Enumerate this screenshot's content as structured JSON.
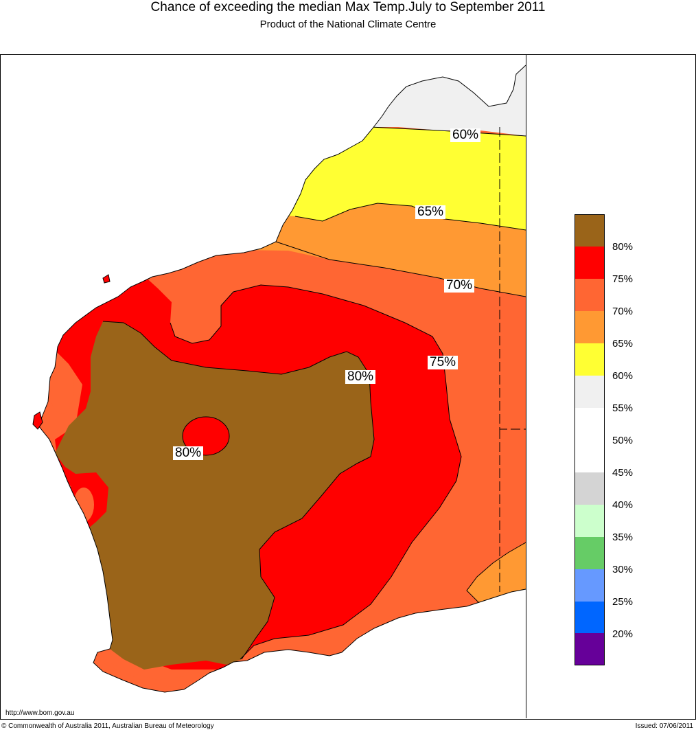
{
  "header": {
    "title": "Chance of exceeding the median Max Temp.July to September 2011",
    "subtitle": "Product of the National Climate Centre"
  },
  "map": {
    "contour_labels": [
      "60%",
      "65%",
      "70%",
      "75%",
      "80%",
      "80%"
    ],
    "region_colors": {
      "above_80": "#9a6419",
      "75_80": "#ff0000",
      "70_75": "#ff6633",
      "65_70": "#ff9933",
      "60_65": "#ffff33",
      "55_60": "#f0f0f0"
    }
  },
  "legend": {
    "swatches": [
      {
        "color": "#9a6419"
      },
      {
        "color": "#ff0000",
        "label": "80%"
      },
      {
        "color": "#ff6633",
        "label": "75%"
      },
      {
        "color": "#ff9933",
        "label": "70%"
      },
      {
        "color": "#ffff33",
        "label": "65%"
      },
      {
        "color": "#f0f0f0",
        "label": "60%"
      },
      {
        "color": "#ffffff",
        "label": "55%"
      },
      {
        "color": "#ffffff",
        "label": "50%"
      },
      {
        "color": "#d4d4d4",
        "label": "45%"
      },
      {
        "color": "#ccffcc",
        "label": "40%"
      },
      {
        "color": "#66cc66",
        "label": "35%"
      },
      {
        "color": "#6699ff",
        "label": "30%"
      },
      {
        "color": "#0066ff",
        "label": "25%"
      },
      {
        "color": "#660099",
        "label": "20%"
      }
    ]
  },
  "footer": {
    "url": "http://www.bom.gov.au",
    "copyright": "© Commonwealth of Australia 2011, Australian Bureau of Meteorology",
    "issued": "Issued: 07/06/2011"
  }
}
